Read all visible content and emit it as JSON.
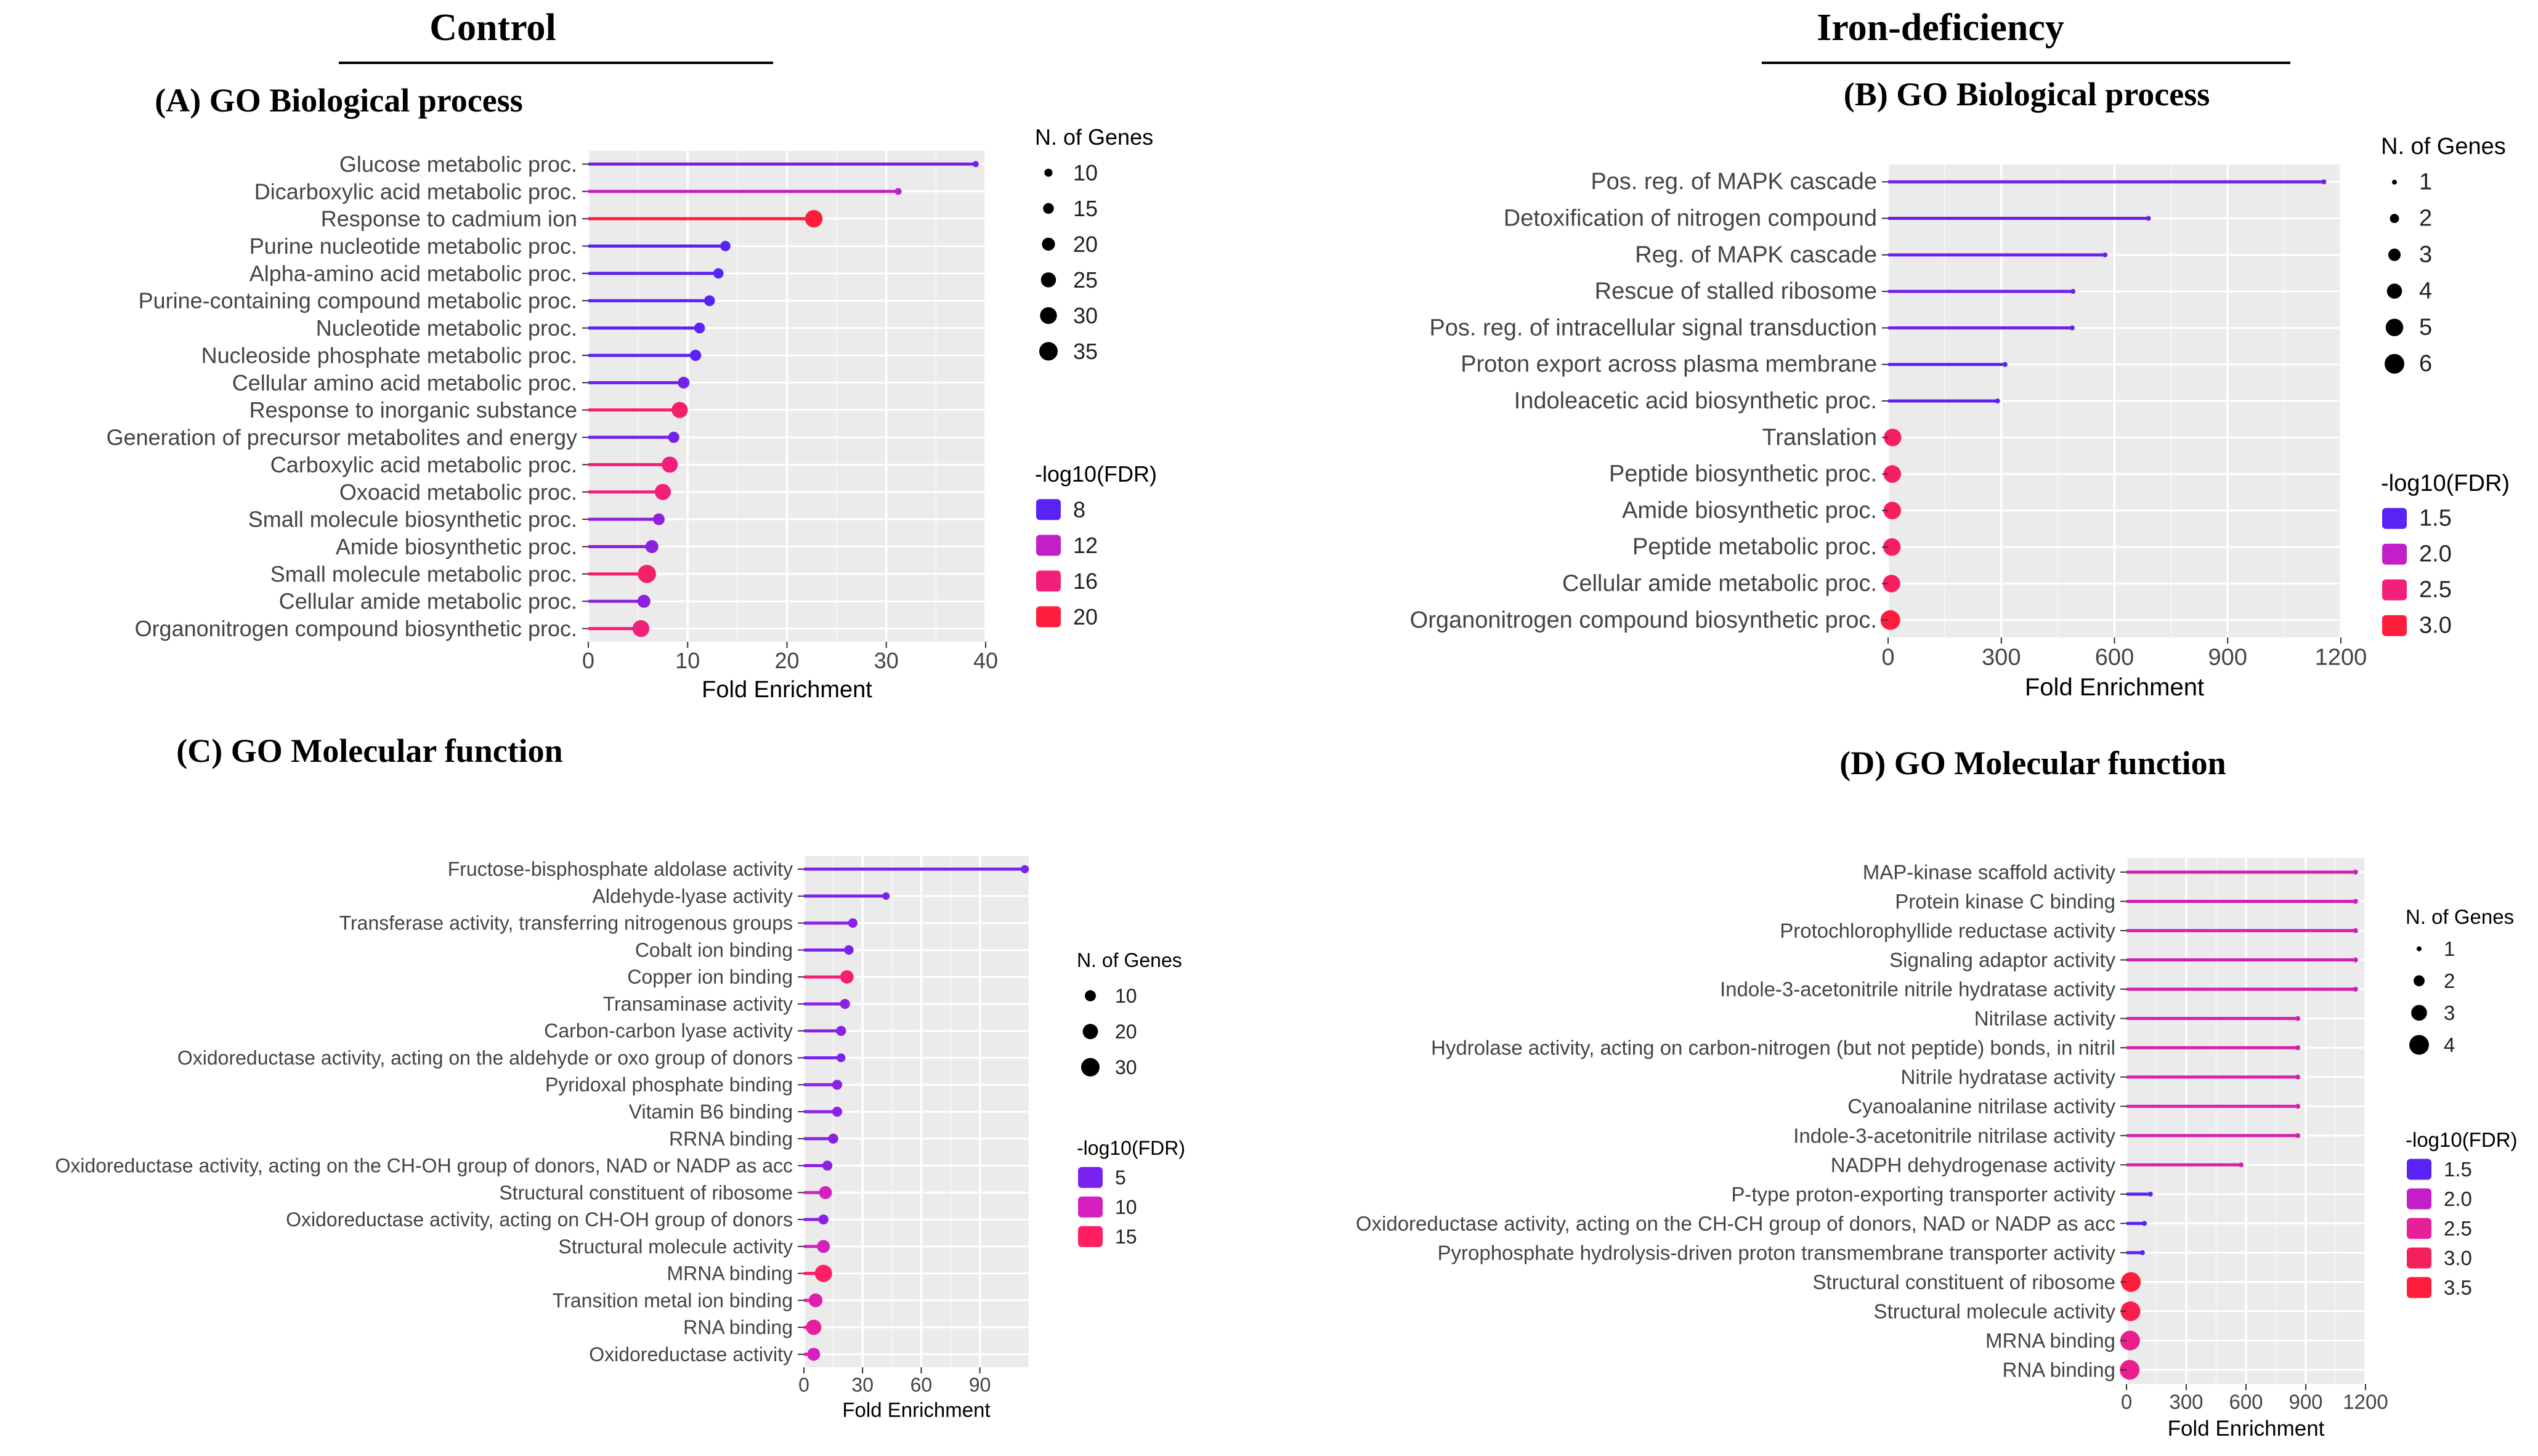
{
  "headers": {
    "control": "Control",
    "iron": "Iron-deficiency"
  },
  "panel_titles": {
    "a": "(A) GO Biological process",
    "b": "(B) GO Biological process",
    "c": "(C) GO Molecular function",
    "d": "(D) GO Molecular function"
  },
  "chart_data": [
    {
      "id": "A",
      "type": "lollipop",
      "title": "(A) GO Biological process",
      "xlabel": "Fold Enrichment",
      "xlim": [
        0,
        40
      ],
      "xticks": [
        0,
        10,
        20,
        30,
        40
      ],
      "categories": [
        "Glucose metabolic proc.",
        "Dicarboxylic acid metabolic proc.",
        "Response to cadmium ion",
        "Purine nucleotide metabolic proc.",
        "Alpha-amino acid metabolic proc.",
        "Purine-containing compound metabolic proc.",
        "Nucleotide metabolic proc.",
        "Nucleoside phosphate metabolic proc.",
        "Cellular amino acid metabolic proc.",
        "Response to inorganic substance",
        "Generation of precursor metabolites and energy",
        "Carboxylic acid metabolic proc.",
        "Oxoacid metabolic proc.",
        "Small molecule biosynthetic proc.",
        "Amide biosynthetic proc.",
        "Small molecule metabolic proc.",
        "Cellular amide metabolic proc.",
        "Organonitrogen compound biosynthetic proc."
      ],
      "fold_enrichment": [
        39,
        31.2,
        22.7,
        13.8,
        13.1,
        12.2,
        11.2,
        10.8,
        9.6,
        9.2,
        8.6,
        8.2,
        7.5,
        7.1,
        6.4,
        5.9,
        5.6,
        5.3
      ],
      "n_genes": [
        7,
        8,
        32,
        14,
        14,
        15,
        15,
        16,
        17,
        28,
        16,
        28,
        28,
        17,
        20,
        34,
        20,
        30
      ],
      "neg_log10_fdr": [
        9,
        12,
        21,
        8,
        8,
        8,
        8,
        8,
        9,
        17,
        9,
        16,
        16,
        10,
        10,
        17,
        10,
        16
      ],
      "size_legend": {
        "title": "N. of Genes",
        "values": [
          10,
          15,
          20,
          25,
          30,
          35
        ]
      },
      "color_legend": {
        "title": "-log10(FDR)",
        "values": [
          8,
          12,
          16,
          20
        ],
        "colors": [
          "#5a22f5",
          "#c21fc8",
          "#f2207a",
          "#fe1d3a"
        ]
      }
    },
    {
      "id": "B",
      "type": "lollipop",
      "title": "(B) GO Biological process",
      "xlabel": "Fold Enrichment",
      "xlim": [
        0,
        1200
      ],
      "xticks": [
        0,
        300,
        600,
        900,
        1200
      ],
      "categories": [
        "Pos. reg. of MAPK cascade",
        "Detoxification of nitrogen compound",
        "Reg. of MAPK cascade",
        "Rescue of stalled ribosome",
        "Pos. reg. of intracellular signal transduction",
        "Proton export across plasma membrane",
        "Indoleacetic acid biosynthetic proc.",
        "Translation",
        "Peptide biosynthetic proc.",
        "Amide biosynthetic proc.",
        "Peptide metabolic proc.",
        "Cellular amide metabolic proc.",
        "Organonitrogen compound biosynthetic proc."
      ],
      "fold_enrichment": [
        1155,
        690,
        575,
        490,
        488,
        310,
        290,
        12,
        11,
        11,
        10,
        9,
        6
      ],
      "n_genes": [
        1,
        1,
        1,
        1,
        1,
        1,
        1,
        5,
        5,
        5,
        5,
        5,
        6
      ],
      "neg_log10_fdr": [
        1.6,
        1.6,
        1.6,
        1.6,
        1.6,
        1.3,
        1.3,
        2.7,
        2.7,
        2.7,
        2.7,
        2.7,
        3.1
      ],
      "size_legend": {
        "title": "N. of Genes",
        "values": [
          1,
          2,
          3,
          4,
          5,
          6
        ]
      },
      "color_legend": {
        "title": "-log10(FDR)",
        "values": [
          1.5,
          2.0,
          2.5,
          3.0
        ],
        "colors": [
          "#5a22f5",
          "#c21fc8",
          "#f2207a",
          "#fe1d3a"
        ]
      }
    },
    {
      "id": "C",
      "type": "lollipop",
      "title": "(C) GO Molecular function",
      "xlabel": "Fold Enrichment",
      "xlim": [
        0,
        115
      ],
      "xticks": [
        0,
        30,
        60,
        90
      ],
      "categories": [
        "Fructose-bisphosphate aldolase activity",
        "Aldehyde-lyase activity",
        "Transferase activity, transferring nitrogenous groups",
        "Cobalt ion binding",
        "Copper ion binding",
        "Transaminase activity",
        "Carbon-carbon lyase activity",
        "Oxidoreductase activity, acting on the aldehyde or oxo group of donors",
        "Pyridoxal phosphate binding",
        "Vitamin B6 binding",
        "RRNA binding",
        "Oxidoreductase activity, acting on the CH-OH group of donors, NAD or NADP as acc",
        "Structural constituent of ribosome",
        "Oxidoreductase activity, acting on CH-OH group of donors",
        "Structural molecule activity",
        "MRNA binding",
        "Transition metal ion binding",
        "RNA binding",
        "Oxidoreductase activity"
      ],
      "fold_enrichment": [
        113,
        42,
        25,
        23,
        22,
        21,
        19,
        19,
        17,
        17,
        15,
        12,
        11,
        10,
        10,
        10,
        6,
        5,
        5
      ],
      "n_genes": [
        5,
        4,
        7,
        7,
        15,
        8,
        8,
        6,
        8,
        8,
        8,
        8,
        14,
        8,
        14,
        26,
        16,
        20,
        14
      ],
      "neg_log10_fdr": [
        5,
        3,
        6,
        4,
        14,
        6,
        6,
        3,
        6,
        6,
        6,
        6,
        10,
        6,
        10,
        16,
        11,
        12,
        10
      ],
      "size_legend": {
        "title": "N. of Genes",
        "values": [
          10,
          20,
          30
        ]
      },
      "color_legend": {
        "title": "-log10(FDR)",
        "values": [
          5,
          10,
          15
        ],
        "colors": [
          "#7a22f0",
          "#d61fbf",
          "#fe1f62"
        ]
      }
    },
    {
      "id": "D",
      "type": "lollipop",
      "title": "(D) GO Molecular function",
      "xlabel": "Fold Enrichment",
      "xlim": [
        0,
        1200
      ],
      "xticks": [
        0,
        300,
        600,
        900,
        1200
      ],
      "categories": [
        "MAP-kinase scaffold activity",
        "Protein kinase C binding",
        "Protochlorophyllide reductase activity",
        "Signaling adaptor activity",
        "Indole-3-acetonitrile nitrile hydratase activity",
        "Nitrilase activity",
        "Hydrolase activity, acting on carbon-nitrogen (but not peptide) bonds, in nitril",
        "Nitrile hydratase activity",
        "Cyanoalanine nitrilase activity",
        "Indole-3-acetonitrile nitrilase activity",
        "NADPH dehydrogenase activity",
        "P-type proton-exporting transporter activity",
        "Oxidoreductase activity, acting on the CH-CH group of donors, NAD or NADP as acc",
        "Pyrophosphate hydrolysis-driven proton transmembrane transporter activity",
        "Structural constituent of ribosome",
        "Structural molecule activity",
        "MRNA binding",
        "RNA binding"
      ],
      "fold_enrichment": [
        1150,
        1150,
        1150,
        1150,
        1150,
        860,
        860,
        860,
        860,
        860,
        575,
        120,
        90,
        80,
        22,
        20,
        18,
        16
      ],
      "n_genes": [
        1,
        1,
        1,
        1,
        1,
        1,
        1,
        1,
        1,
        1,
        1,
        1,
        1,
        1,
        4,
        4,
        4,
        4
      ],
      "neg_log10_fdr": [
        2.2,
        2.2,
        2.2,
        2.2,
        2.2,
        2.3,
        2.3,
        2.3,
        2.3,
        2.3,
        2.3,
        1.5,
        1.5,
        1.5,
        3.5,
        3.2,
        2.6,
        2.6
      ],
      "size_legend": {
        "title": "N. of Genes",
        "values": [
          1,
          2,
          3,
          4
        ]
      },
      "color_legend": {
        "title": "-log10(FDR)",
        "values": [
          1.5,
          2.0,
          2.5,
          3.0,
          3.5
        ],
        "colors": [
          "#5a22f5",
          "#c21fc8",
          "#e81f9a",
          "#f4205e",
          "#fe1d3a"
        ]
      }
    }
  ]
}
